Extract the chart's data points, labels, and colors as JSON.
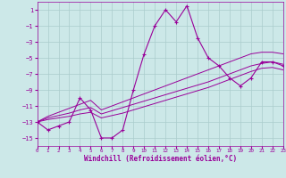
{
  "xlabel": "Windchill (Refroidissement éolien,°C)",
  "bg_color": "#cce8e8",
  "grid_color": "#aacccc",
  "line_color": "#990099",
  "x_data": [
    0,
    1,
    2,
    3,
    4,
    5,
    6,
    7,
    8,
    9,
    10,
    11,
    12,
    13,
    14,
    15,
    16,
    17,
    18,
    19,
    20,
    21,
    22,
    23
  ],
  "y_main": [
    -13,
    -14,
    -13.5,
    -13,
    -10,
    -11.5,
    -15,
    -15,
    -14,
    -9,
    -4.5,
    -1,
    1,
    -0.5,
    1.5,
    -2.5,
    -5,
    -6,
    -7.5,
    -8.5,
    -7.5,
    -5.5,
    -5.5,
    -6
  ],
  "y_line1": [
    -13,
    -12.3,
    -11.8,
    -11.3,
    -10.8,
    -10.3,
    -11.5,
    -11.0,
    -10.5,
    -10.0,
    -9.5,
    -9.0,
    -8.5,
    -8.0,
    -7.5,
    -7.0,
    -6.5,
    -6.0,
    -5.5,
    -5.0,
    -4.5,
    -4.3,
    -4.3,
    -4.5
  ],
  "y_line2": [
    -13,
    -12.5,
    -12.2,
    -11.9,
    -11.5,
    -11.2,
    -12.0,
    -11.6,
    -11.2,
    -10.8,
    -10.4,
    -10.0,
    -9.6,
    -9.2,
    -8.8,
    -8.4,
    -8.0,
    -7.5,
    -7.0,
    -6.5,
    -6.0,
    -5.7,
    -5.5,
    -5.8
  ],
  "y_line3": [
    -13,
    -12.7,
    -12.5,
    -12.3,
    -12.0,
    -11.8,
    -12.5,
    -12.2,
    -11.9,
    -11.5,
    -11.1,
    -10.7,
    -10.3,
    -9.9,
    -9.5,
    -9.1,
    -8.7,
    -8.2,
    -7.7,
    -7.2,
    -6.7,
    -6.3,
    -6.2,
    -6.5
  ],
  "ylim": [
    -16,
    2
  ],
  "yticks": [
    1,
    -1,
    -3,
    -5,
    -7,
    -9,
    -11,
    -13,
    -15
  ],
  "xlim": [
    0,
    23
  ],
  "xticks": [
    0,
    1,
    2,
    3,
    4,
    5,
    6,
    7,
    8,
    9,
    10,
    11,
    12,
    13,
    14,
    15,
    16,
    17,
    18,
    19,
    20,
    21,
    22,
    23
  ]
}
